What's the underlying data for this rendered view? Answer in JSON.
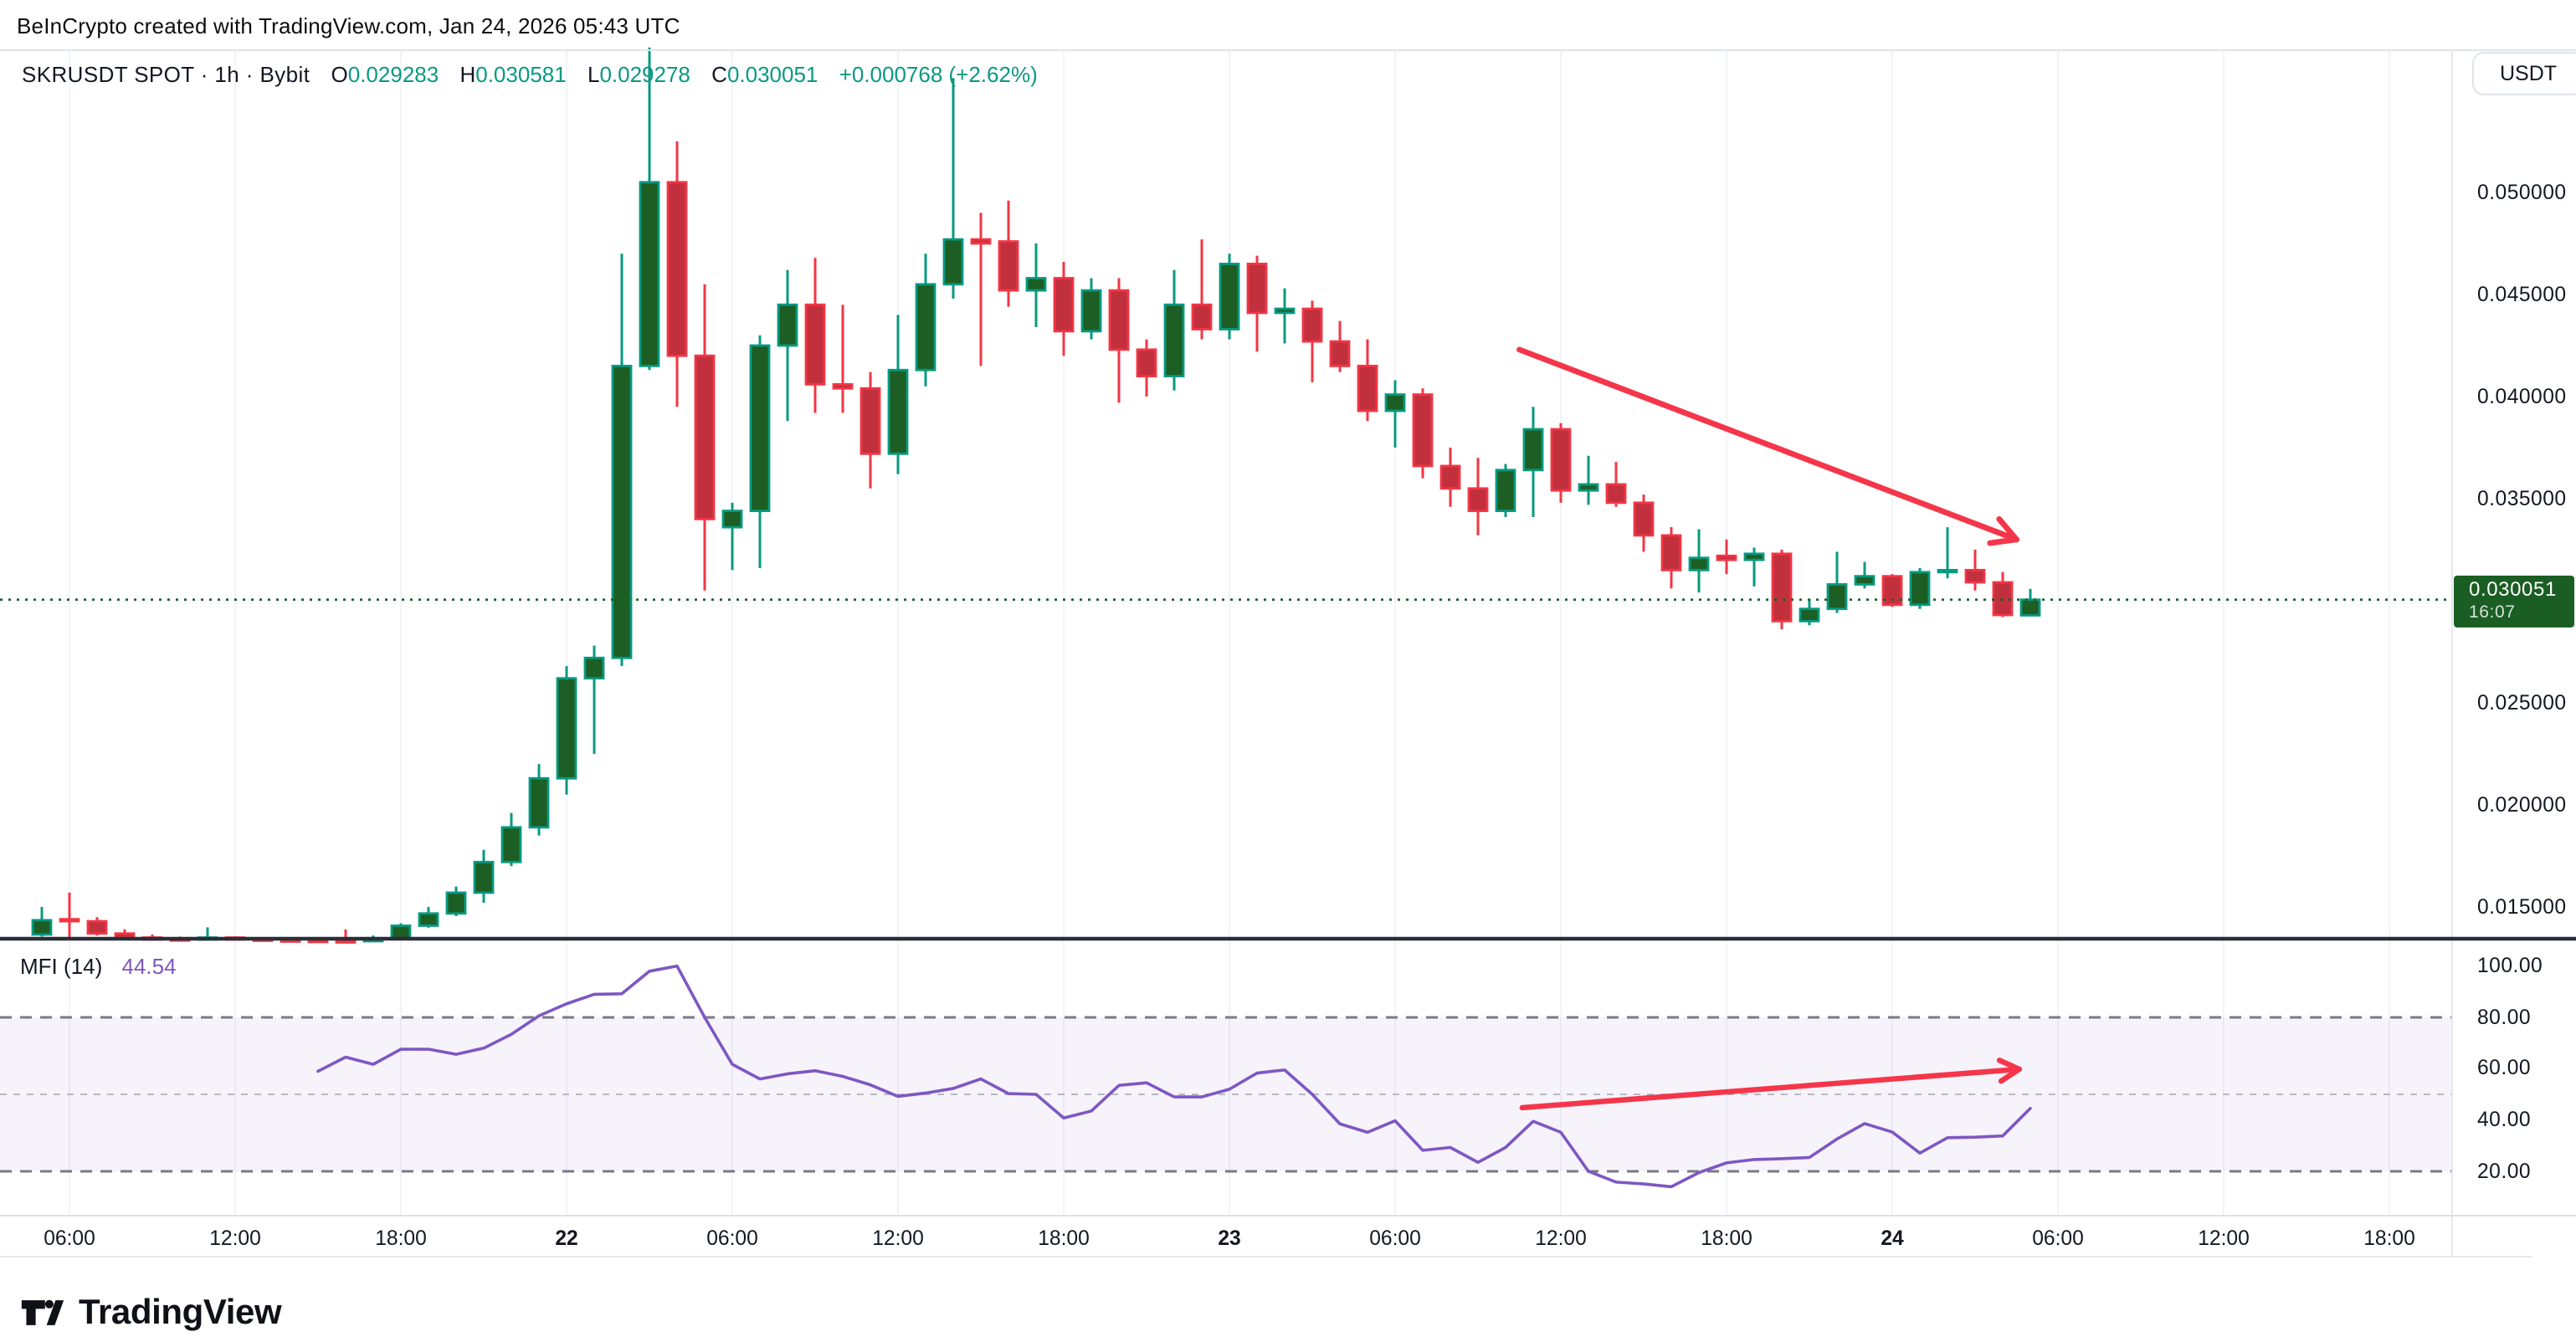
{
  "header": {
    "title": "BeInCrypto created with TradingView.com, Jan 24, 2026 05:43 UTC"
  },
  "legend": {
    "symbol": "SKRUSDT SPOT · 1h · Bybit",
    "o_label": "O",
    "o_value": "0.029283",
    "h_label": "H",
    "h_value": "0.030581",
    "l_label": "L",
    "l_value": "0.029278",
    "c_label": "C",
    "c_value": "0.030051",
    "change": "+0.000768 (+2.62%)"
  },
  "currency_button": {
    "label": "USDT"
  },
  "indicator_row": {
    "name": "MFI (14)",
    "value": "44.54"
  },
  "price_badge": {
    "price": "0.030051",
    "countdown": "16:07"
  },
  "price_axis": {
    "labels": [
      {
        "text": "0.050000",
        "value": 0.05
      },
      {
        "text": "0.045000",
        "value": 0.045
      },
      {
        "text": "0.040000",
        "value": 0.04
      },
      {
        "text": "0.035000",
        "value": 0.035
      },
      {
        "text": "0.025000",
        "value": 0.025
      },
      {
        "text": "0.020000",
        "value": 0.02
      },
      {
        "text": "0.015000",
        "value": 0.015
      }
    ]
  },
  "mfi_axis": {
    "labels": [
      {
        "text": "100.00",
        "value": 100
      },
      {
        "text": "80.00",
        "value": 80
      },
      {
        "text": "60.00",
        "value": 60
      },
      {
        "text": "40.00",
        "value": 40
      },
      {
        "text": "20.00",
        "value": 20
      }
    ]
  },
  "logo": {
    "text": "TradingView"
  },
  "colors": {
    "text": "#131722",
    "teal": "#089981",
    "up_fill": "#1c5e23",
    "up_border": "#089981",
    "down_fill": "#c2303e",
    "down_border": "#f23645",
    "badge_bg": "#1b5e23",
    "current_price_line": "#1d5e29",
    "mfi_line": "#7e57c2",
    "mfi_band": "#7e57c2",
    "level_strong": "#787b86",
    "level_mid": "#b6b9c3",
    "grid": "#f2f4f9",
    "divider_dark": "#2a2e39",
    "border_light": "#e0e3eb",
    "arrow": "#f5364a"
  },
  "chart_data": {
    "type": "candlestick",
    "symbol": "SKRUSDT SPOT",
    "exchange": "Bybit",
    "interval": "1h",
    "first_candle_time": "Jan 21 05:00 UTC",
    "interval_hours": 1,
    "ylim": [
      0.0131,
      0.0573
    ],
    "current_price": 0.030051,
    "last": {
      "open": 0.029283,
      "high": 0.030581,
      "low": 0.029278,
      "close": 0.030051,
      "change": 0.000768,
      "change_pct": 2.62
    },
    "candles": [
      [
        0.01365,
        0.015,
        0.01355,
        0.01435
      ],
      [
        0.0144,
        0.0157,
        0.0135,
        0.0143
      ],
      [
        0.0143,
        0.0145,
        0.0136,
        0.0137
      ],
      [
        0.0137,
        0.0139,
        0.0134,
        0.0135
      ],
      [
        0.0135,
        0.01365,
        0.01335,
        0.01345
      ],
      [
        0.01345,
        0.01355,
        0.01338,
        0.01342
      ],
      [
        0.01342,
        0.014,
        0.01338,
        0.0135
      ],
      [
        0.0135,
        0.01356,
        0.0134,
        0.01344
      ],
      [
        0.01344,
        0.0135,
        0.01336,
        0.0134
      ],
      [
        0.0134,
        0.01348,
        0.01334,
        0.01338
      ],
      [
        0.01338,
        0.01344,
        0.01332,
        0.01336
      ],
      [
        0.01336,
        0.0139,
        0.0133,
        0.01334
      ],
      [
        0.01334,
        0.0136,
        0.01328,
        0.01342
      ],
      [
        0.01342,
        0.0142,
        0.01336,
        0.01408
      ],
      [
        0.01408,
        0.015,
        0.01398,
        0.01468
      ],
      [
        0.01468,
        0.016,
        0.01455,
        0.0157
      ],
      [
        0.0157,
        0.0178,
        0.0152,
        0.0172
      ],
      [
        0.0172,
        0.0196,
        0.017,
        0.0189
      ],
      [
        0.0189,
        0.022,
        0.0185,
        0.0213
      ],
      [
        0.0213,
        0.0268,
        0.0205,
        0.0262
      ],
      [
        0.0262,
        0.0278,
        0.0225,
        0.0272
      ],
      [
        0.0272,
        0.047,
        0.0268,
        0.0415
      ],
      [
        0.0415,
        0.0571,
        0.0413,
        0.0505
      ],
      [
        0.0505,
        0.0525,
        0.0395,
        0.042
      ],
      [
        0.042,
        0.0455,
        0.0305,
        0.034
      ],
      [
        0.0336,
        0.0348,
        0.0315,
        0.0344
      ],
      [
        0.0344,
        0.043,
        0.0316,
        0.0425
      ],
      [
        0.0425,
        0.0462,
        0.0388,
        0.0445
      ],
      [
        0.0445,
        0.0468,
        0.0392,
        0.0406
      ],
      [
        0.0406,
        0.0445,
        0.0392,
        0.0404
      ],
      [
        0.0404,
        0.0412,
        0.0355,
        0.0372
      ],
      [
        0.0372,
        0.044,
        0.0362,
        0.0413
      ],
      [
        0.0413,
        0.047,
        0.0405,
        0.0455
      ],
      [
        0.0455,
        0.0556,
        0.0448,
        0.0477
      ],
      [
        0.0477,
        0.049,
        0.0415,
        0.0475
      ],
      [
        0.0476,
        0.0496,
        0.0444,
        0.0452
      ],
      [
        0.0452,
        0.0475,
        0.0434,
        0.0458
      ],
      [
        0.0458,
        0.0466,
        0.042,
        0.0432
      ],
      [
        0.0432,
        0.0458,
        0.0428,
        0.0452
      ],
      [
        0.0452,
        0.0458,
        0.0397,
        0.0423
      ],
      [
        0.0423,
        0.0428,
        0.04,
        0.041
      ],
      [
        0.041,
        0.0462,
        0.0403,
        0.0445
      ],
      [
        0.0445,
        0.0477,
        0.0428,
        0.0433
      ],
      [
        0.0433,
        0.047,
        0.0428,
        0.0465
      ],
      [
        0.0465,
        0.0469,
        0.0422,
        0.0441
      ],
      [
        0.0441,
        0.0453,
        0.0426,
        0.0443
      ],
      [
        0.0443,
        0.0447,
        0.0407,
        0.0427
      ],
      [
        0.0427,
        0.0437,
        0.0412,
        0.0415
      ],
      [
        0.0415,
        0.0428,
        0.0388,
        0.0393
      ],
      [
        0.0393,
        0.0408,
        0.0375,
        0.0401
      ],
      [
        0.0401,
        0.0404,
        0.036,
        0.0366
      ],
      [
        0.0366,
        0.0375,
        0.0346,
        0.0355
      ],
      [
        0.0355,
        0.037,
        0.0332,
        0.0344
      ],
      [
        0.0344,
        0.0367,
        0.0341,
        0.0364
      ],
      [
        0.0364,
        0.0395,
        0.0341,
        0.0384
      ],
      [
        0.0384,
        0.0387,
        0.0348,
        0.0354
      ],
      [
        0.0354,
        0.0371,
        0.0347,
        0.0357
      ],
      [
        0.0357,
        0.0368,
        0.0346,
        0.0348
      ],
      [
        0.0348,
        0.0352,
        0.0324,
        0.0332
      ],
      [
        0.0332,
        0.0336,
        0.0306,
        0.0315
      ],
      [
        0.0315,
        0.0335,
        0.0304,
        0.0321
      ],
      [
        0.0322,
        0.033,
        0.0313,
        0.032
      ],
      [
        0.032,
        0.0326,
        0.0307,
        0.0323
      ],
      [
        0.0323,
        0.0325,
        0.0286,
        0.029
      ],
      [
        0.029,
        0.0301,
        0.0288,
        0.0296
      ],
      [
        0.0296,
        0.0324,
        0.0294,
        0.0308
      ],
      [
        0.0308,
        0.0319,
        0.0306,
        0.0312
      ],
      [
        0.0312,
        0.0313,
        0.0297,
        0.0298
      ],
      [
        0.0298,
        0.0316,
        0.0296,
        0.0314
      ],
      [
        0.0314,
        0.0336,
        0.0311,
        0.0315
      ],
      [
        0.0315,
        0.0325,
        0.0305,
        0.0309
      ],
      [
        0.0309,
        0.0314,
        0.0292,
        0.0293
      ],
      [
        0.029283,
        0.030581,
        0.029278,
        0.030051
      ]
    ],
    "time_ticks": [
      {
        "label": "06:00",
        "index": 1,
        "bold": false
      },
      {
        "label": "12:00",
        "index": 7,
        "bold": false
      },
      {
        "label": "18:00",
        "index": 13,
        "bold": false
      },
      {
        "label": "22",
        "index": 19,
        "bold": true
      },
      {
        "label": "06:00",
        "index": 25,
        "bold": false
      },
      {
        "label": "12:00",
        "index": 31,
        "bold": false
      },
      {
        "label": "18:00",
        "index": 37,
        "bold": false
      },
      {
        "label": "23",
        "index": 43,
        "bold": true
      },
      {
        "label": "06:00",
        "index": 49,
        "bold": false
      },
      {
        "label": "12:00",
        "index": 55,
        "bold": false
      },
      {
        "label": "18:00",
        "index": 61,
        "bold": false
      },
      {
        "label": "24",
        "index": 67,
        "bold": true
      },
      {
        "label": "06:00",
        "index": 73,
        "bold": false
      },
      {
        "label": "12:00",
        "index": 79,
        "bold": false
      },
      {
        "label": "18:00",
        "index": 85,
        "bold": false
      }
    ],
    "indicator": {
      "name": "MFI",
      "length": 14,
      "value": 44.54,
      "ylim": [
        0,
        100
      ],
      "levels": {
        "overbought": 80,
        "middle": 50,
        "oversold": 20
      },
      "start_index": 10,
      "values": [
        59,
        64.5,
        61.7,
        67.6,
        67.6,
        65.6,
        68,
        73.4,
        80.6,
        85.3,
        89,
        89.2,
        98,
        100,
        80,
        61.7,
        56,
        58,
        59.2,
        57,
        53.7,
        49.2,
        50.5,
        52.3,
        56,
        50.3,
        50,
        40.8,
        43.5,
        53.5,
        54.5,
        49,
        49,
        52,
        58.3,
        59.5,
        50,
        38.5,
        35.2,
        39.7,
        28.2,
        29.3,
        23.5,
        29.3,
        39.5,
        35.2,
        20,
        15.8,
        15.1,
        14,
        19.5,
        23.3,
        24.6,
        24.9,
        25.4,
        32.6,
        38.6,
        35.3,
        27.1,
        33.1,
        33.3,
        33.8,
        44.54
      ]
    },
    "drawings": {
      "price_arrow": {
        "from": {
          "index": 53.5,
          "price": 0.0423
        },
        "to": {
          "index": 71.5,
          "price": 0.033
        }
      },
      "mfi_arrow": {
        "from": {
          "index": 53.6,
          "value": 44.8
        },
        "to": {
          "index": 71.6,
          "value": 59.8
        }
      }
    }
  }
}
